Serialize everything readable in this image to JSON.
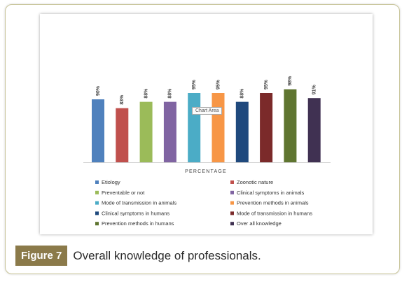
{
  "figure": {
    "label": "Figure 7",
    "caption": "Overall knowledge of professionals."
  },
  "tooltip": "Chart Area",
  "chart_data": {
    "type": "bar",
    "title": "",
    "xlabel": "PERCENTAGE",
    "ylabel": "",
    "ylim": [
      0,
      100
    ],
    "grid": false,
    "legend_placement": "bottom",
    "categories": [
      "Etiology",
      "Zoonotic nature",
      "Preventable or not",
      "Clinical symptoms in animals",
      "Mode of transmission in animals",
      "Prevention methods in animals",
      "Clinical symptoms in humans",
      "Mode of transmission in humans",
      "Prevention methods in humans",
      "Over all knowledge"
    ],
    "values": [
      90,
      83,
      88,
      88,
      95,
      95,
      88,
      95,
      98,
      91
    ],
    "data_labels": [
      "90%",
      "83%",
      "88%",
      "88%",
      "95%",
      "95%",
      "88%",
      "95%",
      "98%",
      "91%"
    ],
    "colors": [
      "#4f81bd",
      "#c0504d",
      "#9bbb59",
      "#8064a2",
      "#4bacc6",
      "#f79646",
      "#1f497d",
      "#7b2a2a",
      "#5f7530",
      "#403152"
    ]
  }
}
